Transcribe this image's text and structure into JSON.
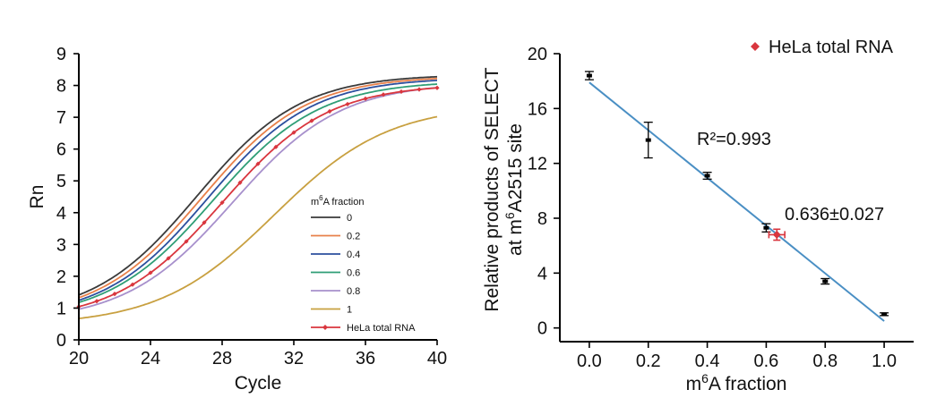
{
  "chart_data": [
    {
      "type": "line",
      "title": "",
      "xlabel": "Cycle",
      "ylabel": "Rn",
      "xlim": [
        20,
        40
      ],
      "ylim": [
        0,
        9
      ],
      "xticks": [
        "20",
        "24",
        "28",
        "32",
        "36",
        "40"
      ],
      "yticks": [
        "0",
        "1",
        "2",
        "3",
        "4",
        "5",
        "6",
        "7",
        "8",
        "9"
      ],
      "legend_title": "m6A fraction",
      "legend_position": "lower-right",
      "series": [
        {
          "name": "0",
          "color": "#3a3a3a",
          "base": 0.7,
          "max": 8.35,
          "mid": 26.6,
          "slope": 2.9,
          "marker": false
        },
        {
          "name": "0.2",
          "color": "#e8804a",
          "base": 0.68,
          "max": 8.3,
          "mid": 26.9,
          "slope": 2.9,
          "marker": false
        },
        {
          "name": "0.4",
          "color": "#2c4f9e",
          "base": 0.66,
          "max": 8.25,
          "mid": 27.2,
          "slope": 2.9,
          "marker": false
        },
        {
          "name": "0.6",
          "color": "#2f9e76",
          "base": 0.63,
          "max": 8.15,
          "mid": 27.5,
          "slope": 2.95,
          "marker": false
        },
        {
          "name": "0.8",
          "color": "#a790cc",
          "base": 0.56,
          "max": 8.1,
          "mid": 28.6,
          "slope": 3.0,
          "marker": false
        },
        {
          "name": "1",
          "color": "#c8a040",
          "base": 0.45,
          "max": 7.4,
          "mid": 30.9,
          "slope": 3.2,
          "marker": false
        },
        {
          "name": "HeLa total RNA",
          "color": "#d9363e",
          "base": 0.58,
          "max": 8.05,
          "mid": 28.0,
          "slope": 2.95,
          "marker": true
        }
      ]
    },
    {
      "type": "scatter",
      "title": "",
      "xlabel": "m6A fraction",
      "ylabel_line1": "Relative products of SELECT",
      "ylabel_line2": "at m6A2515 site",
      "xlim": [
        -0.1,
        1.1
      ],
      "ylim": [
        -1,
        20
      ],
      "xticks": [
        "0.0",
        "0.2",
        "0.4",
        "0.6",
        "0.8",
        "1.0"
      ],
      "yticks": [
        "0",
        "4",
        "8",
        "12",
        "16",
        "20"
      ],
      "points": [
        {
          "x": 0.0,
          "y": 18.4,
          "yerr": 0.3
        },
        {
          "x": 0.2,
          "y": 13.7,
          "yerr": 1.3
        },
        {
          "x": 0.4,
          "y": 11.1,
          "yerr": 0.25
        },
        {
          "x": 0.6,
          "y": 7.3,
          "yerr": 0.3
        },
        {
          "x": 0.8,
          "y": 3.4,
          "yerr": 0.2
        },
        {
          "x": 1.0,
          "y": 1.0,
          "yerr": 0.1
        }
      ],
      "fit_line": {
        "x1": 0.0,
        "y1": 17.9,
        "x2": 1.0,
        "y2": 0.5,
        "color": "#4a8fc4"
      },
      "r_squared_label": "R²=0.993",
      "hela_point": {
        "x": 0.636,
        "y": 6.8,
        "xerr": 0.027,
        "yerr": 0.4,
        "color": "#d9363e"
      },
      "hela_label": "0.636±0.027",
      "legend": {
        "label": "HeLa total RNA",
        "position": "top-right"
      }
    }
  ]
}
